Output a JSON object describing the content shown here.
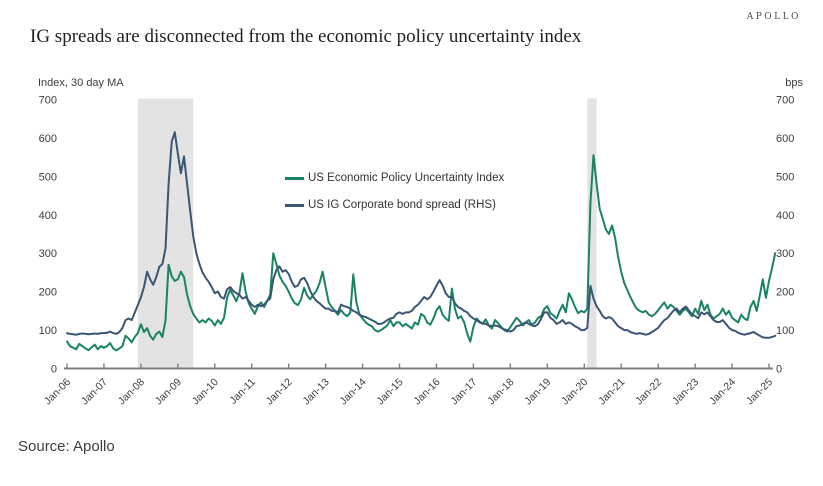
{
  "brand": {
    "logo_text": "APOLLO"
  },
  "title": "IG spreads are disconnected from the economic policy uncertainty index",
  "source": "Source: Apollo",
  "colors": {
    "epu_green": "#1a8265",
    "ig_blue": "#3a5674",
    "band_gray": "#e3e3e3",
    "axis_gray": "#7f7f7f",
    "tick_text": "#3d3d3d"
  },
  "chart_data": {
    "type": "line",
    "title": "IG spreads are disconnected from the economic policy uncertainty index",
    "left_axis": {
      "label": "Index, 30 day MA",
      "min": 0,
      "max": 700,
      "tick_labels": [
        "0",
        "100",
        "200",
        "300",
        "400",
        "500",
        "600",
        "700"
      ]
    },
    "right_axis": {
      "label": "bps",
      "min": 0,
      "max": 700,
      "tick_labels": [
        "0",
        "100",
        "200",
        "300",
        "400",
        "500",
        "600",
        "700"
      ]
    },
    "x_tick_labels": [
      "Jan-06",
      "Jan-07",
      "Jan-08",
      "Jan-09",
      "Jan-10",
      "Jan-11",
      "Jan-12",
      "Jan-13",
      "Jan-14",
      "Jan-15",
      "Jan-16",
      "Jan-17",
      "Jan-18",
      "Jan-19",
      "Jan-20",
      "Jan-21",
      "Jan-22",
      "Jan-23",
      "Jan-24",
      "Jan-25"
    ],
    "start_month": "2006-01",
    "frequency": "monthly",
    "grid": false,
    "legend_position": "inside-top-center",
    "shaded_bands": [
      {
        "start": "2007-12",
        "end": "2009-06"
      },
      {
        "start": "2020-02",
        "end": "2020-05"
      }
    ],
    "series": [
      {
        "name": "US Economic Policy Uncertainty Index",
        "axis": "left",
        "color": "#1a8265",
        "values": [
          70,
          58,
          54,
          50,
          64,
          58,
          52,
          48,
          55,
          62,
          50,
          58,
          54,
          58,
          66,
          52,
          47,
          52,
          58,
          85,
          78,
          68,
          82,
          92,
          115,
          95,
          105,
          85,
          75,
          90,
          96,
          82,
          125,
          270,
          240,
          228,
          232,
          252,
          238,
          192,
          162,
          142,
          130,
          120,
          126,
          120,
          130,
          124,
          112,
          126,
          116,
          132,
          185,
          205,
          190,
          175,
          196,
          248,
          200,
          170,
          156,
          142,
          162,
          172,
          160,
          176,
          192,
          300,
          272,
          242,
          226,
          215,
          200,
          182,
          170,
          165,
          180,
          210,
          190,
          180,
          192,
          202,
          222,
          252,
          212,
          172,
          160,
          150,
          140,
          152,
          142,
          136,
          146,
          245,
          172,
          140,
          130,
          120,
          114,
          110,
          100,
          96,
          100,
          106,
          112,
          126,
          110,
          120,
          120,
          110,
          116,
          110,
          104,
          120,
          114,
          142,
          136,
          120,
          114,
          130,
          152,
          162,
          140,
          130,
          124,
          208,
          156,
          130,
          136,
          120,
          90,
          70,
          108,
          130,
          122,
          116,
          128,
          112,
          104,
          126,
          118,
          108,
          100,
          96,
          108,
          120,
          132,
          124,
          112,
          120,
          126,
          114,
          120,
          132,
          136,
          155,
          162,
          144,
          138,
          130,
          150,
          166,
          146,
          196,
          180,
          160,
          144,
          150,
          146,
          156,
          430,
          555,
          480,
          415,
          390,
          362,
          350,
          372,
          340,
          290,
          252,
          222,
          204,
          186,
          170,
          156,
          150,
          146,
          150,
          140,
          136,
          142,
          152,
          162,
          172,
          156,
          166,
          160,
          150,
          140,
          150,
          156,
          146,
          136,
          156,
          142,
          176,
          152,
          166,
          140,
          130,
          136,
          142,
          156,
          140,
          150,
          132,
          126,
          120,
          140,
          130,
          126,
          160,
          176,
          150,
          190,
          232,
          184,
          228,
          262,
          300
        ]
      },
      {
        "name": "US IG Corporate bond spread (RHS)",
        "axis": "right",
        "color": "#3a5674",
        "values": [
          92,
          90,
          89,
          88,
          90,
          91,
          90,
          89,
          90,
          91,
          90,
          92,
          92,
          93,
          96,
          92,
          90,
          95,
          105,
          126,
          130,
          126,
          145,
          165,
          185,
          212,
          252,
          232,
          218,
          238,
          265,
          272,
          312,
          480,
          590,
          615,
          560,
          508,
          552,
          480,
          410,
          345,
          300,
          272,
          250,
          236,
          226,
          212,
          196,
          200,
          186,
          182,
          206,
          212,
          202,
          196,
          192,
          182,
          186,
          176,
          166,
          160,
          166,
          162,
          166,
          176,
          182,
          232,
          256,
          266,
          252,
          256,
          246,
          226,
          212,
          216,
          232,
          236,
          222,
          202,
          186,
          176,
          170,
          162,
          156,
          156,
          150,
          150,
          146,
          166,
          162,
          160,
          156,
          150,
          146,
          140,
          136,
          134,
          130,
          126,
          122,
          116,
          116,
          120,
          126,
          130,
          132,
          142,
          146,
          142,
          146,
          146,
          150,
          160,
          166,
          176,
          186,
          180,
          186,
          200,
          216,
          230,
          216,
          196,
          186,
          186,
          170,
          160,
          156,
          150,
          146,
          136,
          130,
          126,
          120,
          118,
          116,
          112,
          110,
          112,
          110,
          106,
          102,
          100,
          96,
          100,
          110,
          112,
          116,
          120,
          116,
          112,
          110,
          116,
          130,
          146,
          146,
          132,
          126,
          116,
          120,
          126,
          116,
          120,
          116,
          110,
          106,
          100,
          100,
          106,
          215,
          182,
          162,
          150,
          136,
          130,
          134,
          130,
          120,
          110,
          105,
          100,
          100,
          95,
          92,
          90,
          92,
          90,
          88,
          90,
          95,
          100,
          106,
          116,
          126,
          131,
          141,
          151,
          156,
          146,
          156,
          161,
          151,
          141,
          136,
          131,
          146,
          141,
          146,
          136,
          126,
          121,
          121,
          126,
          116,
          106,
          100,
          98,
          93,
          90,
          88,
          90,
          92,
          95,
          90,
          85,
          81,
          80,
          80,
          82,
          85
        ]
      }
    ]
  }
}
